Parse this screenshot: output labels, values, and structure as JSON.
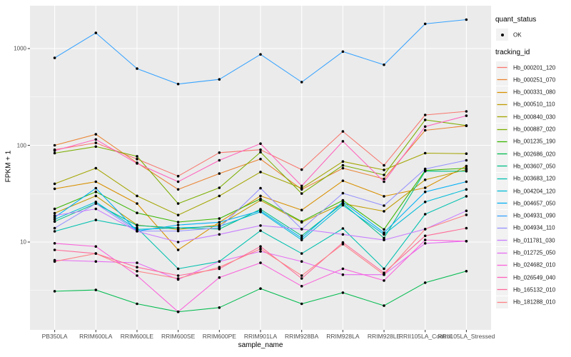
{
  "chart_data": {
    "type": "line",
    "title": "",
    "xlabel": "sample_name",
    "ylabel": "FPKM + 1",
    "y_scale": "log10",
    "ylim": [
      1.3,
      2800
    ],
    "y_major_ticks": [
      10,
      100,
      1000
    ],
    "y_major_tick_labels": [
      "10",
      "100",
      "1000"
    ],
    "y_minor_gridlines": [
      3.162,
      31.62,
      316.2
    ],
    "grid": true,
    "legend_position": "right",
    "point_style": {
      "shape": "filled-circle",
      "color": "#000000"
    },
    "categories": [
      "PB350LA",
      "RRIM600LA",
      "RRIM600LE",
      "RRIM600SE",
      "RRIM600PE",
      "RRIM901LA",
      "RRIM928BA",
      "RRIM928LA",
      "RRIM928LE",
      "RRII105LA_Control",
      "RRII105LA_Stressed"
    ],
    "series": [
      {
        "name": "Hb_000201_120",
        "color": "#F8766D",
        "values": [
          90,
          106,
          72,
          48,
          84,
          90,
          56,
          139,
          62,
          206,
          224
        ]
      },
      {
        "name": "Hb_000251_070",
        "color": "#EA8331",
        "values": [
          100,
          130,
          66,
          35,
          51,
          72,
          35,
          58,
          45,
          143,
          159
        ]
      },
      {
        "name": "Hb_000331_080",
        "color": "#D89000",
        "values": [
          35.5,
          42,
          25,
          8.3,
          16,
          30,
          21.4,
          43,
          29.7,
          36.4,
          61
        ]
      },
      {
        "name": "Hb_000510_110",
        "color": "#C09B00",
        "values": [
          19.9,
          30,
          15,
          13.5,
          15,
          27,
          16,
          25,
          20.8,
          44,
          56
        ]
      },
      {
        "name": "Hb_000840_030",
        "color": "#A3A500",
        "values": [
          40,
          58,
          30,
          19,
          30,
          53,
          36,
          68,
          55.6,
          83,
          82
        ]
      },
      {
        "name": "Hb_000887_020",
        "color": "#7CAE00",
        "values": [
          83,
          97,
          77,
          25,
          36.4,
          85,
          31.7,
          62,
          49.4,
          183,
          160
        ]
      },
      {
        "name": "Hb_001235_190",
        "color": "#39B600",
        "values": [
          22,
          33,
          20,
          16.1,
          17.5,
          28,
          16.3,
          27,
          13.5,
          55,
          58
        ]
      },
      {
        "name": "Hb_002686_020",
        "color": "#00BB4E",
        "values": [
          3.1,
          3.2,
          2.3,
          1.9,
          2.1,
          3.3,
          2.3,
          3.0,
          2.2,
          3.8,
          5.0
        ]
      },
      {
        "name": "Hb_003607_050",
        "color": "#00C087",
        "values": [
          16.3,
          25,
          14.8,
          14,
          13.6,
          21.8,
          11.6,
          25,
          11,
          54,
          54
        ]
      },
      {
        "name": "Hb_003683_120",
        "color": "#00C0AF",
        "values": [
          12.9,
          16.9,
          14,
          5.3,
          6.3,
          13.1,
          7.6,
          13.8,
          5.3,
          19.4,
          29.7
        ]
      },
      {
        "name": "Hb_004204_120",
        "color": "#00BCD8",
        "values": [
          17.2,
          26,
          13.5,
          14,
          14.5,
          20.5,
          10.5,
          24,
          12,
          26,
          35
        ]
      },
      {
        "name": "Hb_004657_050",
        "color": "#00B0F6",
        "values": [
          18,
          36,
          13,
          15,
          16,
          21,
          11,
          26,
          12.5,
          33,
          42
        ]
      },
      {
        "name": "Hb_004931_090",
        "color": "#35A2FF",
        "values": [
          800,
          1450,
          620,
          430,
          480,
          870,
          450,
          930,
          680,
          1800,
          1990
        ]
      },
      {
        "name": "Hb_004934_110",
        "color": "#9590FF",
        "values": [
          13.9,
          25,
          13,
          13,
          14,
          36,
          13.6,
          32,
          23.8,
          57,
          70
        ]
      },
      {
        "name": "Hb_011781_030",
        "color": "#C77CFF",
        "values": [
          18.8,
          22,
          12.9,
          10,
          12,
          14.8,
          13.6,
          12,
          10.5,
          13.6,
          21
        ]
      },
      {
        "name": "Hb_012725_050",
        "color": "#E76BF3",
        "values": [
          6.5,
          6.3,
          6.1,
          4.1,
          6.3,
          8.0,
          6.3,
          4.6,
          4.6,
          9.7,
          10.2
        ]
      },
      {
        "name": "Hb_024682_010",
        "color": "#FA62DB",
        "values": [
          9.7,
          9.0,
          4.5,
          1.9,
          4.3,
          6.1,
          3.5,
          5.3,
          4.0,
          10.5,
          10.2
        ]
      },
      {
        "name": "Hb_026549_040",
        "color": "#FF62BC",
        "values": [
          88,
          115,
          65,
          42,
          70,
          104,
          38,
          110,
          42,
          156,
          202
        ]
      },
      {
        "name": "Hb_165132_010",
        "color": "#FF6A98",
        "values": [
          8.3,
          7.6,
          5.5,
          4.5,
          5.3,
          9.0,
          4.2,
          9.9,
          4.8,
          11.6,
          13.9
        ]
      },
      {
        "name": "Hb_181288_010",
        "color": "#FE8185",
        "values": [
          6.3,
          7.6,
          5.0,
          4.2,
          5.5,
          8.5,
          4.5,
          9.5,
          4.6,
          13.6,
          19.1
        ]
      }
    ]
  },
  "legend": {
    "quant_status": {
      "title": "quant_status",
      "items": [
        {
          "label": "OK",
          "shape": "point",
          "color": "#000000"
        }
      ]
    },
    "tracking_id": {
      "title": "tracking_id"
    }
  },
  "style": {
    "panel_bg": "#EBEBEB",
    "grid_color": "#FFFFFF",
    "tick_mark_color": "#333333",
    "tick_text_color": "#4D4D4D",
    "key_bg": "#F2F2F2"
  }
}
